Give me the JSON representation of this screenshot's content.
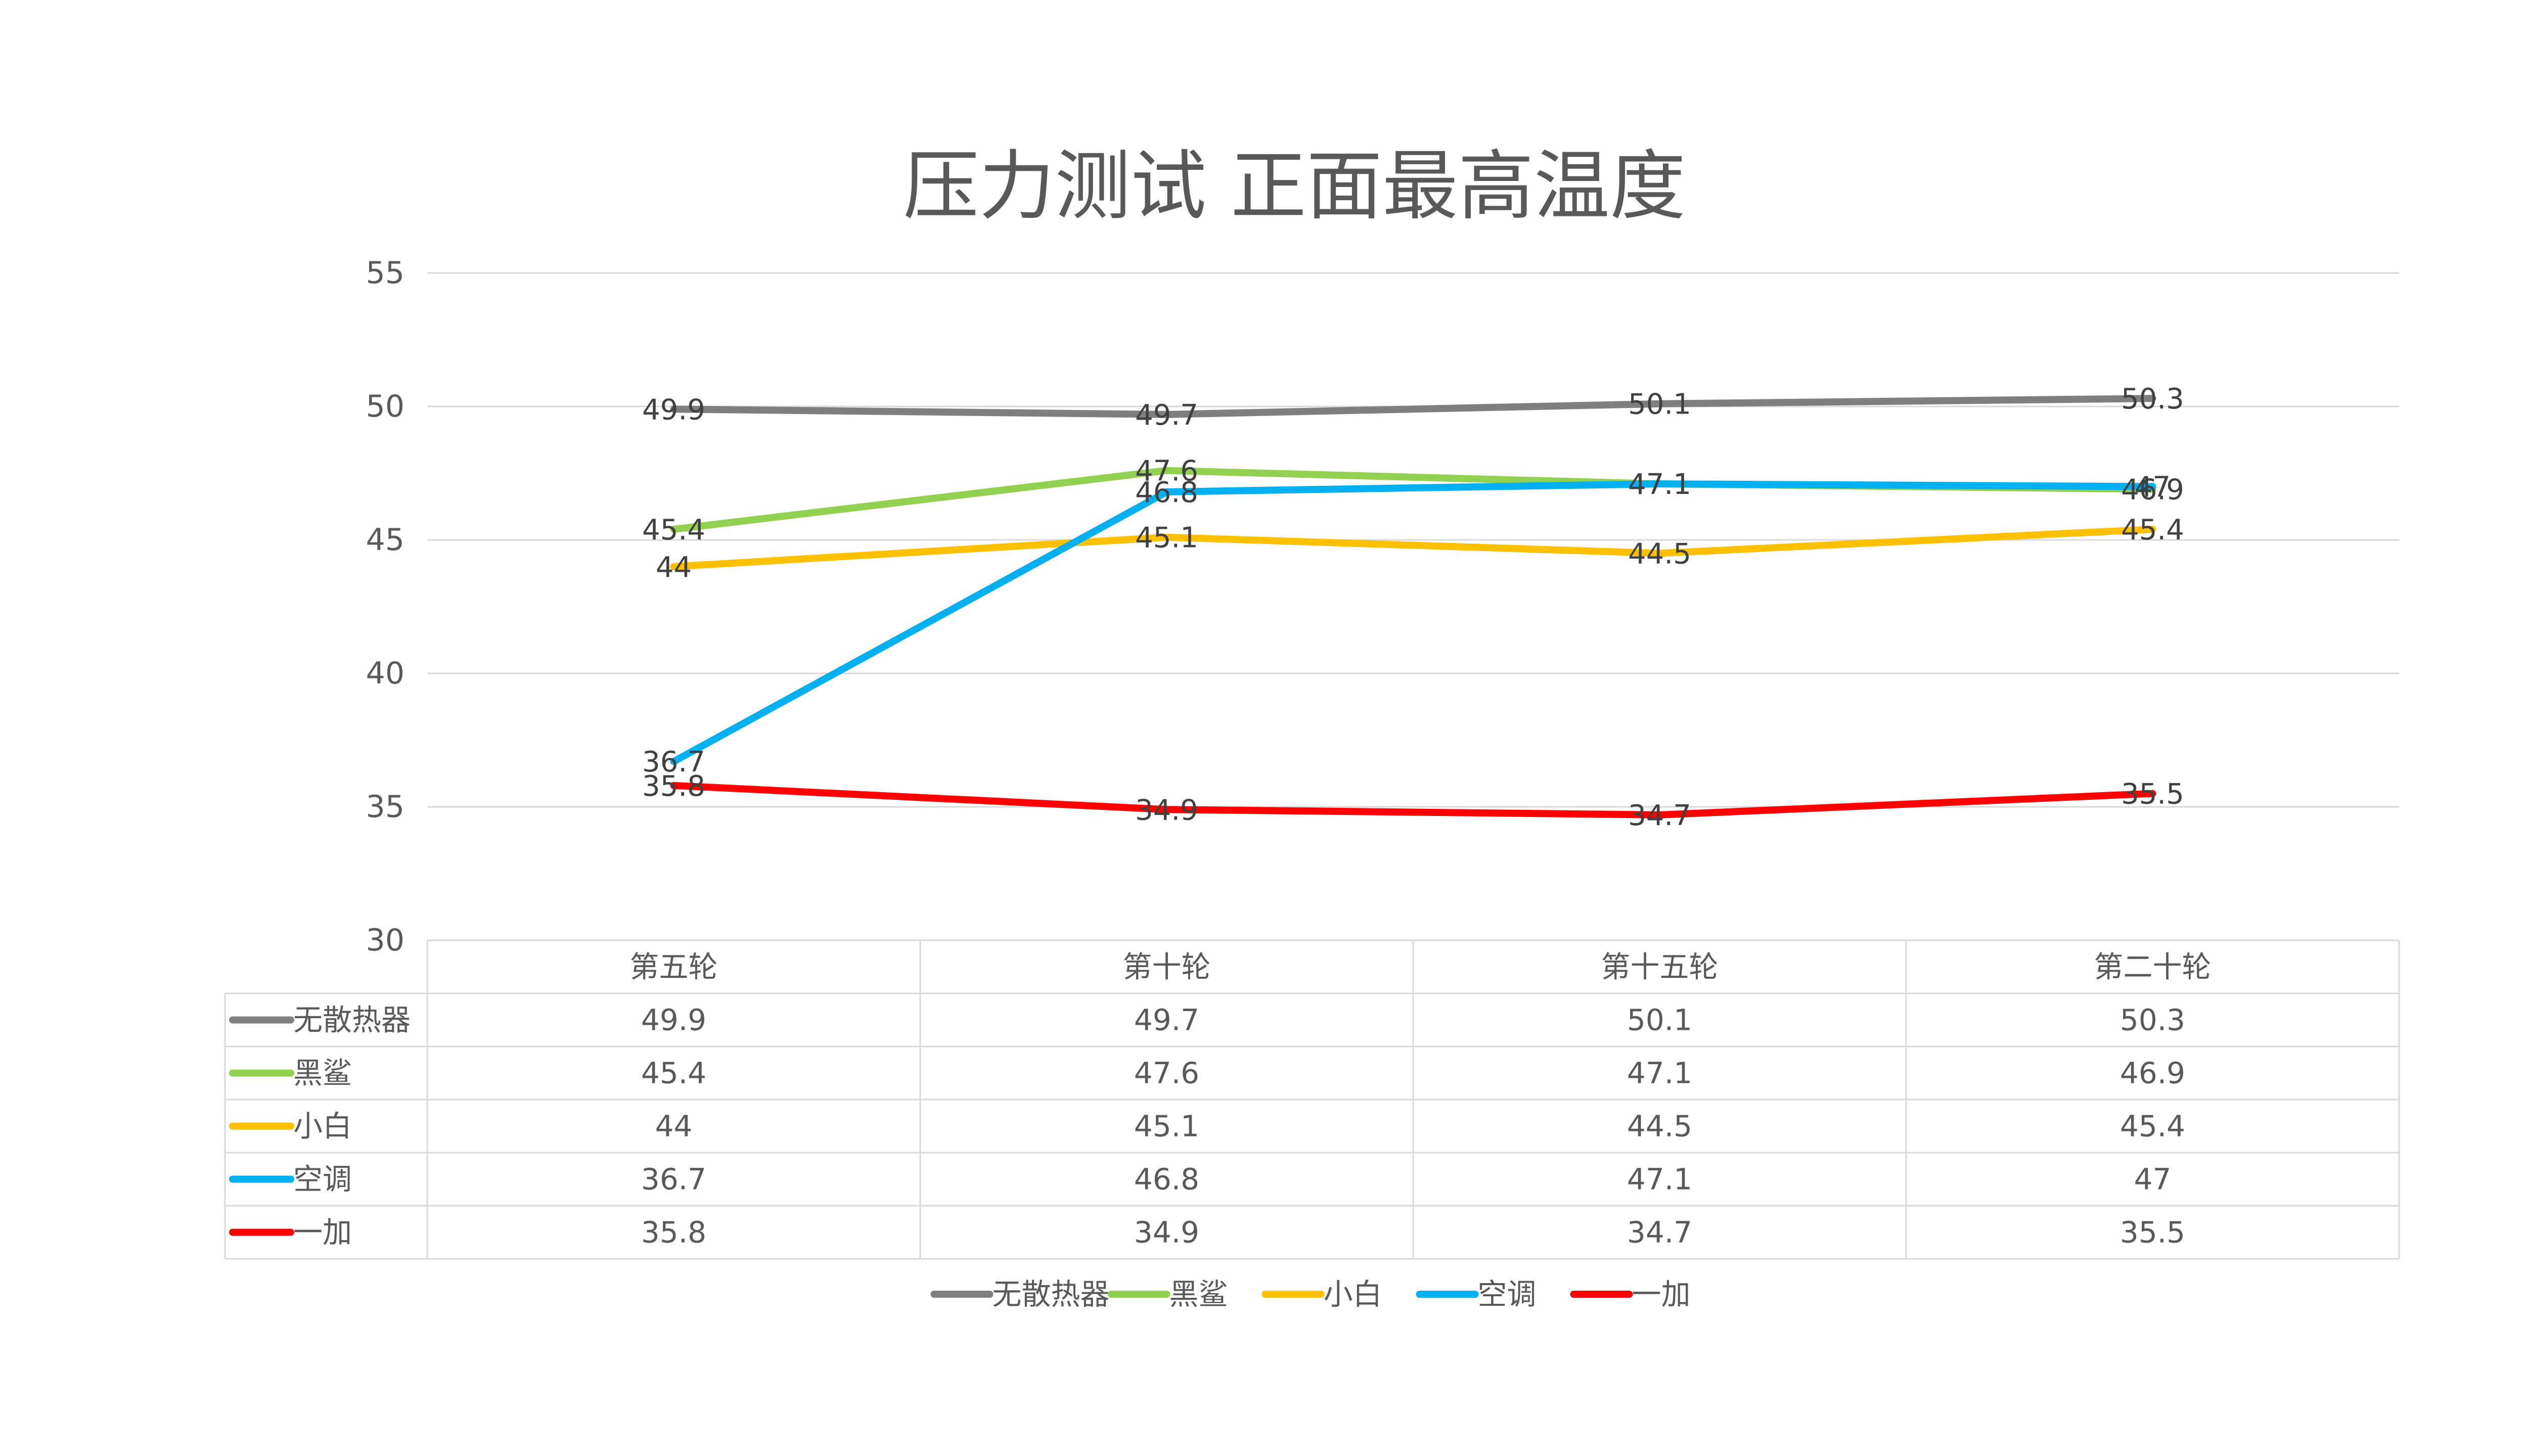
{
  "chart_data": {
    "type": "line",
    "title": "压力测试 正面最高温度",
    "categories": [
      "第五轮",
      "第十轮",
      "第十五轮",
      "第二十轮"
    ],
    "ylim": [
      30,
      55
    ],
    "yticks": [
      30,
      35,
      40,
      45,
      50,
      55
    ],
    "grid": true,
    "legend": "bottom",
    "data_table": true,
    "series": [
      {
        "name": "无散热器",
        "values": [
          49.9,
          49.7,
          50.1,
          50.3
        ],
        "color": "#7f7f7f"
      },
      {
        "name": "黑鲨",
        "values": [
          45.4,
          47.6,
          47.1,
          46.9
        ],
        "color": "#92d050"
      },
      {
        "name": "小白",
        "values": [
          44,
          45.1,
          44.5,
          45.4
        ],
        "color": "#ffc000"
      },
      {
        "name": "空调",
        "values": [
          36.7,
          46.8,
          47.1,
          47
        ],
        "color": "#00b0f0"
      },
      {
        "name": "一加",
        "values": [
          35.8,
          34.9,
          34.7,
          35.5
        ],
        "color": "#ff0000"
      }
    ]
  }
}
